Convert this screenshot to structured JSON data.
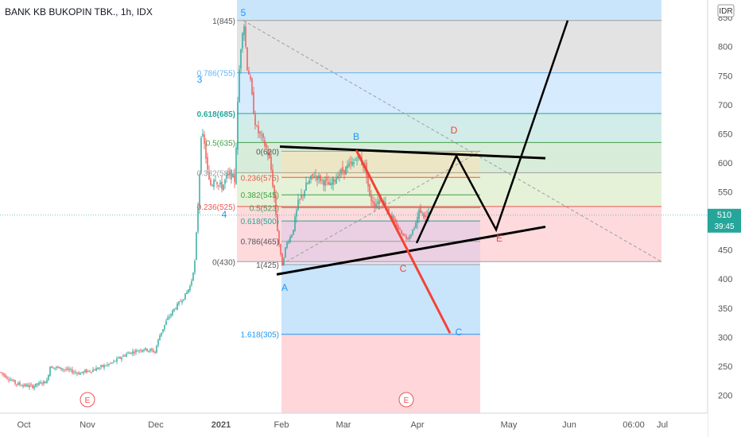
{
  "title": "BANK KB BUKOPIN TBK., 1h, IDX",
  "currency": "IDR",
  "current_price": "510",
  "countdown": "39:45",
  "colors": {
    "up": "#26a69a",
    "down": "#ef5350",
    "fib_red": "#ef5350",
    "fib_blue": "#2196f3",
    "fib_green": "#4caf50",
    "fib_gray": "#9e9e9e"
  },
  "chart_data": {
    "type": "candlestick",
    "x_ticks": [
      "Oct",
      "Nov",
      "Dec",
      "2021",
      "Feb",
      "Mar",
      "Apr",
      "May",
      "Jun",
      "06:00",
      "Jul"
    ],
    "y_ticks": [
      200,
      250,
      300,
      350,
      400,
      450,
      500,
      550,
      600,
      650,
      700,
      750,
      800,
      850
    ],
    "ylim": [
      170,
      870
    ],
    "price_path": [
      [
        0,
        240
      ],
      [
        20,
        220
      ],
      [
        40,
        215
      ],
      [
        60,
        225
      ],
      [
        62,
        250
      ],
      [
        80,
        245
      ],
      [
        100,
        238
      ],
      [
        120,
        245
      ],
      [
        140,
        255
      ],
      [
        160,
        272
      ],
      [
        180,
        280
      ],
      [
        195,
        275
      ],
      [
        200,
        300
      ],
      [
        210,
        330
      ],
      [
        220,
        350
      ],
      [
        232,
        370
      ],
      [
        240,
        390
      ],
      [
        245,
        430
      ],
      [
        250,
        550
      ],
      [
        253,
        650
      ],
      [
        256,
        640
      ],
      [
        260,
        600
      ],
      [
        262,
        570
      ],
      [
        266,
        560
      ],
      [
        270,
        580
      ],
      [
        275,
        560
      ],
      [
        280,
        560
      ],
      [
        285,
        575
      ],
      [
        290,
        580
      ],
      [
        295,
        570
      ],
      [
        298,
        660
      ],
      [
        300,
        740
      ],
      [
        303,
        800
      ],
      [
        306,
        845
      ],
      [
        308,
        830
      ],
      [
        310,
        770
      ],
      [
        314,
        750
      ],
      [
        318,
        700
      ],
      [
        322,
        660
      ],
      [
        326,
        650
      ],
      [
        330,
        640
      ],
      [
        335,
        625
      ],
      [
        340,
        600
      ],
      [
        345,
        540
      ],
      [
        350,
        470
      ],
      [
        353,
        440
      ],
      [
        355,
        425
      ],
      [
        360,
        460
      ],
      [
        368,
        480
      ],
      [
        375,
        530
      ],
      [
        385,
        560
      ],
      [
        395,
        580
      ],
      [
        405,
        570
      ],
      [
        415,
        560
      ],
      [
        425,
        580
      ],
      [
        435,
        590
      ],
      [
        445,
        600
      ],
      [
        450,
        615
      ],
      [
        455,
        600
      ],
      [
        460,
        590
      ],
      [
        465,
        540
      ],
      [
        472,
        530
      ],
      [
        480,
        540
      ],
      [
        487,
        520
      ],
      [
        495,
        500
      ],
      [
        505,
        480
      ],
      [
        512,
        470
      ],
      [
        518,
        480
      ],
      [
        524,
        500
      ],
      [
        528,
        520
      ],
      [
        535,
        505
      ],
      [
        540,
        510
      ]
    ],
    "fib_levels_upper": [
      {
        "label": "0(430)",
        "value": 430
      },
      {
        "label": "0.236(525)",
        "value": 525
      },
      {
        "label": "0.382(583)",
        "value": 583
      },
      {
        "label": "0.5(635)",
        "value": 635
      },
      {
        "label": "0.618(685)",
        "value": 685
      },
      {
        "label": "0.786(755)",
        "value": 755
      },
      {
        "label": "1(845)",
        "value": 845
      }
    ],
    "fib_levels_lower": [
      {
        "label": "0(620)",
        "value": 620
      },
      {
        "label": "0.236(575)",
        "value": 575
      },
      {
        "label": "0.382(545)",
        "value": 545
      },
      {
        "label": "0.5(523)",
        "value": 523
      },
      {
        "label": "0.618(500)",
        "value": 500
      },
      {
        "label": "0.786(465)",
        "value": 465
      },
      {
        "label": "1(425)",
        "value": 425
      },
      {
        "label": "1.618(305)",
        "value": 305
      }
    ],
    "wave_labels": [
      "5",
      "3",
      "4",
      "A",
      "B",
      "C",
      "D",
      "E",
      "C",
      "E"
    ],
    "event_markers": [
      "E",
      "E"
    ]
  }
}
